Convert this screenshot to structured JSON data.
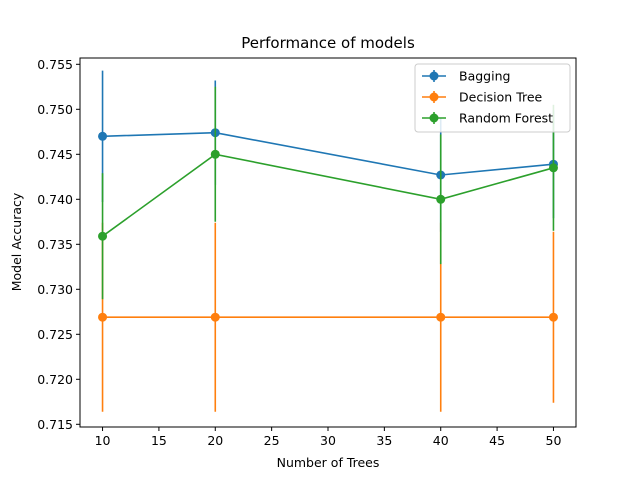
{
  "chart_data": {
    "type": "line",
    "title": "Performance of models",
    "xlabel": "Number of Trees",
    "ylabel": "Model Accuracy",
    "x": [
      10,
      20,
      40,
      50
    ],
    "xlim": [
      8,
      52
    ],
    "ylim": [
      0.7147,
      0.7557
    ],
    "xticks": [
      10,
      15,
      20,
      25,
      30,
      35,
      40,
      45,
      50
    ],
    "xtick_labels": [
      "10",
      "15",
      "20",
      "25",
      "30",
      "35",
      "40",
      "45",
      "50"
    ],
    "yticks": [
      0.715,
      0.72,
      0.725,
      0.73,
      0.735,
      0.74,
      0.745,
      0.75,
      0.755
    ],
    "ytick_labels": [
      "0.715",
      "0.720",
      "0.725",
      "0.730",
      "0.735",
      "0.740",
      "0.745",
      "0.750",
      "0.755"
    ],
    "grid": false,
    "legend_position": "top-right",
    "series": [
      {
        "name": "Bagging",
        "color": "#1f77b4",
        "values": [
          0.747,
          0.7474,
          0.7427,
          0.7439
        ],
        "errors": [
          0.0073,
          0.0058,
          0.0063,
          0.006
        ]
      },
      {
        "name": "Decision Tree",
        "color": "#ff7f0e",
        "values": [
          0.7269,
          0.7269,
          0.7269,
          0.7269
        ],
        "errors": [
          0.0105,
          0.0105,
          0.0105,
          0.0095
        ]
      },
      {
        "name": "Random Forest",
        "color": "#2ca02c",
        "values": [
          0.7359,
          0.745,
          0.74,
          0.7435
        ],
        "errors": [
          0.007,
          0.0075,
          0.0072,
          0.007
        ]
      }
    ]
  }
}
